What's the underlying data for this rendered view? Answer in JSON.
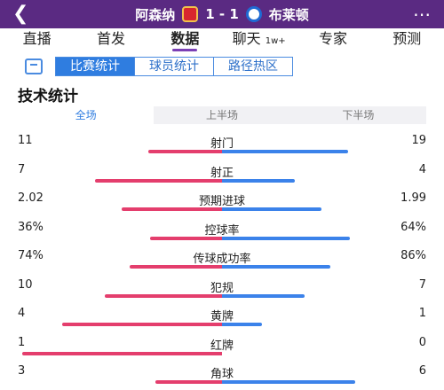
{
  "header": {
    "home_team": "阿森纳",
    "away_team": "布莱顿",
    "score": "1 - 1",
    "back_icon": "chevron-left-icon",
    "more_icon": "more-dots-icon"
  },
  "tabs": [
    {
      "label": "直播"
    },
    {
      "label": "首发"
    },
    {
      "label": "数据"
    },
    {
      "label": "聊天"
    },
    {
      "label": "专家"
    },
    {
      "label": "预测"
    }
  ],
  "chat_badge": "1w+",
  "subtabs": [
    {
      "label": "比赛统计"
    },
    {
      "label": "球员统计"
    },
    {
      "label": "路径热区"
    }
  ],
  "section_title": "技术统计",
  "periods": [
    {
      "label": "全场"
    },
    {
      "label": "上半场"
    },
    {
      "label": "下半场"
    }
  ],
  "colors": {
    "home": "#e43e6d",
    "away": "#3b82ea",
    "header": "#5a2a82"
  },
  "stats": [
    {
      "name": "射门",
      "home": "11",
      "away": "19",
      "home_share": 0.367,
      "away_share": 0.633
    },
    {
      "name": "射正",
      "home": "7",
      "away": "4",
      "home_share": 0.636,
      "away_share": 0.364
    },
    {
      "name": "预期进球",
      "home": "2.02",
      "away": "1.99",
      "home_share": 0.504,
      "away_share": 0.496
    },
    {
      "name": "控球率",
      "home": "36%",
      "away": "64%",
      "home_share": 0.36,
      "away_share": 0.64
    },
    {
      "name": "传球成功率",
      "home": "74%",
      "away": "86%",
      "home_share": 0.46,
      "away_share": 0.54
    },
    {
      "name": "犯规",
      "home": "10",
      "away": "7",
      "home_share": 0.588,
      "away_share": 0.412
    },
    {
      "name": "黄牌",
      "home": "4",
      "away": "1",
      "home_share": 0.8,
      "away_share": 0.2
    },
    {
      "name": "红牌",
      "home": "1",
      "away": "0",
      "home_share": 1.0,
      "away_share": 0.0
    },
    {
      "name": "角球",
      "home": "3",
      "away": "6",
      "home_share": 0.333,
      "away_share": 0.667
    }
  ]
}
